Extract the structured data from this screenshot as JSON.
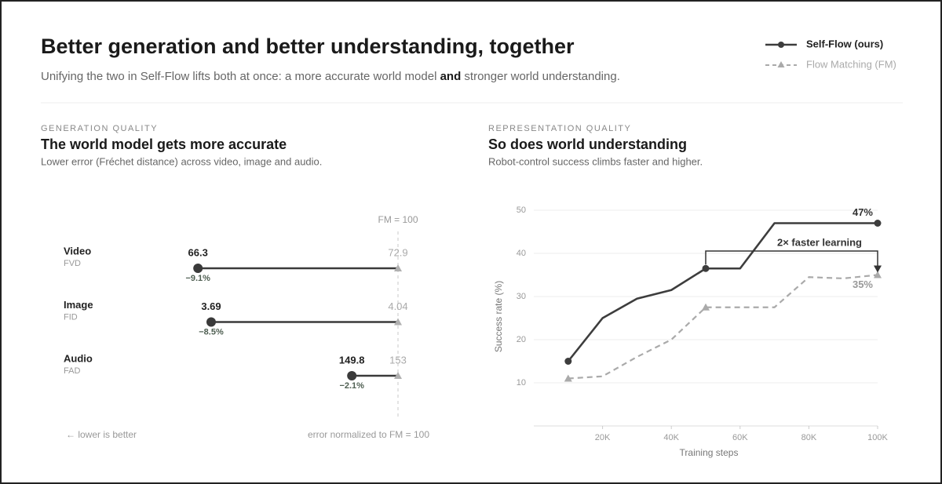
{
  "header": {
    "title": "Better generation and better understanding, together",
    "subtitle_parts": [
      "Unifying the two in Self-Flow lifts both at once: a more accurate world model ",
      "and",
      " stronger world understanding."
    ]
  },
  "chart_data": [
    {
      "type": "dumbbell",
      "kicker": "GENERATION QUALITY",
      "title": "The world model gets more accurate",
      "subtitle": "Lower error (Fréchet distance) across video, image and audio.",
      "categories": [
        "Video",
        "Image",
        "Audio"
      ],
      "metrics": [
        "FVD",
        "FID",
        "FAD"
      ],
      "series": [
        {
          "color": "#3a3a3a",
          "values": [
            66.3,
            3.69,
            149.8
          ]
        },
        {
          "color": "#b0b0b0",
          "values": [
            72.9,
            4.04,
            153
          ]
        }
      ],
      "change": [
        -9.1,
        -8.5,
        -2.1
      ],
      "change_labels": [
        "−9.1%",
        "−8.5%",
        "−2.1%"
      ],
      "xlim": [
        -10,
        1
      ],
      "reference_label": "FM = 100",
      "note_left": "← lower is better",
      "note_right": "error normalized to FM = 100"
    },
    {
      "type": "line",
      "kicker": "REPRESENTATION QUALITY",
      "title": "So does world understanding",
      "subtitle": "Robot-control success climbs faster and higher.",
      "x": [
        10000,
        20000,
        30000,
        40000,
        50000,
        60000,
        70000,
        80000,
        90000,
        100000
      ],
      "series": [
        {
          "name": "Self-Flow (ours)",
          "color": "#3d3d3d",
          "dashed": false,
          "marker": "circle",
          "values": [
            15,
            25,
            29.5,
            31.5,
            36.5,
            36.5,
            47,
            47,
            47,
            47
          ],
          "value_labels": [
            null,
            null,
            null,
            null,
            null,
            null,
            null,
            null,
            null,
            "47%"
          ]
        },
        {
          "name": "Flow Matching (FM)",
          "color": "#aaaaaa",
          "dashed": true,
          "marker": "triangle",
          "values": [
            11,
            11.5,
            16,
            20,
            27.5,
            27.5,
            27.5,
            34.5,
            34.2,
            35
          ],
          "value_labels": [
            null,
            null,
            null,
            null,
            null,
            null,
            null,
            null,
            null,
            "35%"
          ]
        }
      ],
      "marker_indices": [
        0,
        4,
        9
      ],
      "xlim": [
        0,
        100000
      ],
      "ylim": [
        0,
        50
      ],
      "xticks": [
        {
          "value": 20000,
          "label": "20K"
        },
        {
          "value": 40000,
          "label": "40K"
        },
        {
          "value": 60000,
          "label": "60K"
        },
        {
          "value": 80000,
          "label": "80K"
        },
        {
          "value": 100000,
          "label": "100K"
        }
      ],
      "yticks": [
        10,
        20,
        30,
        40,
        50
      ],
      "grid": true,
      "xlabel": "Training steps",
      "ylabel": "Success rate (%)",
      "annotation": "2× faster learning"
    }
  ]
}
